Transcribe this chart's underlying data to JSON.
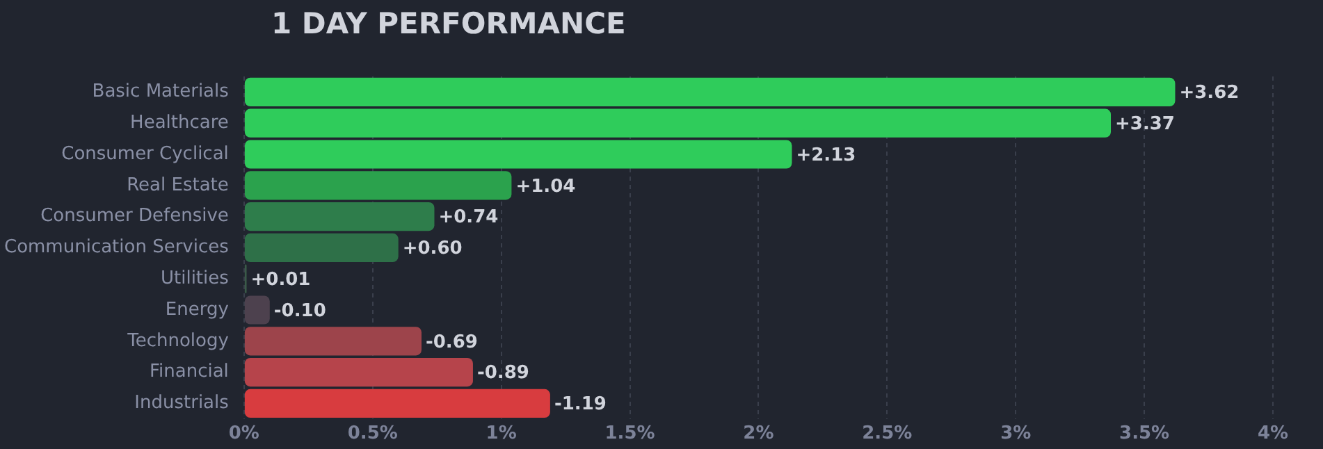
{
  "chart_data": {
    "type": "bar",
    "orientation": "horizontal",
    "title": "1 DAY PERFORMANCE",
    "categories": [
      "Basic Materials",
      "Healthcare",
      "Consumer Cyclical",
      "Real Estate",
      "Consumer Defensive",
      "Communication Services",
      "Utilities",
      "Energy",
      "Technology",
      "Financial",
      "Industrials"
    ],
    "values": [
      3.62,
      3.37,
      2.13,
      1.04,
      0.74,
      0.6,
      0.01,
      -0.1,
      -0.69,
      -0.89,
      -1.19
    ],
    "base": [
      0,
      0,
      0,
      0,
      0,
      0,
      0,
      0.1,
      0.69,
      0.89,
      1.19
    ],
    "value_labels": [
      "+3.62",
      "+3.37",
      "+2.13",
      "+1.04",
      "+0.74",
      "+0.60",
      "+0.01",
      "-0.10",
      "-0.69",
      "-0.89",
      "-1.19"
    ],
    "colors": [
      "#2fcc5b",
      "#2fcc5b",
      "#2fcc5b",
      "#2ba24d",
      "#2e7d4b",
      "#2e7048",
      "#3a5a48",
      "#4d414e",
      "#9d444b",
      "#b6444b",
      "#d83c3f"
    ],
    "xlim": [
      0,
      4
    ],
    "xticks": [
      {
        "value": 0,
        "label": "0%"
      },
      {
        "value": 0.5,
        "label": "0.5%"
      },
      {
        "value": 1,
        "label": "1%"
      },
      {
        "value": 1.5,
        "label": "1.5%"
      },
      {
        "value": 2,
        "label": "2%"
      },
      {
        "value": 2.5,
        "label": "2.5%"
      },
      {
        "value": 3,
        "label": "3%"
      },
      {
        "value": 3.5,
        "label": "3.5%"
      },
      {
        "value": 4,
        "label": "4%"
      }
    ],
    "grid": "x",
    "legend": false
  }
}
